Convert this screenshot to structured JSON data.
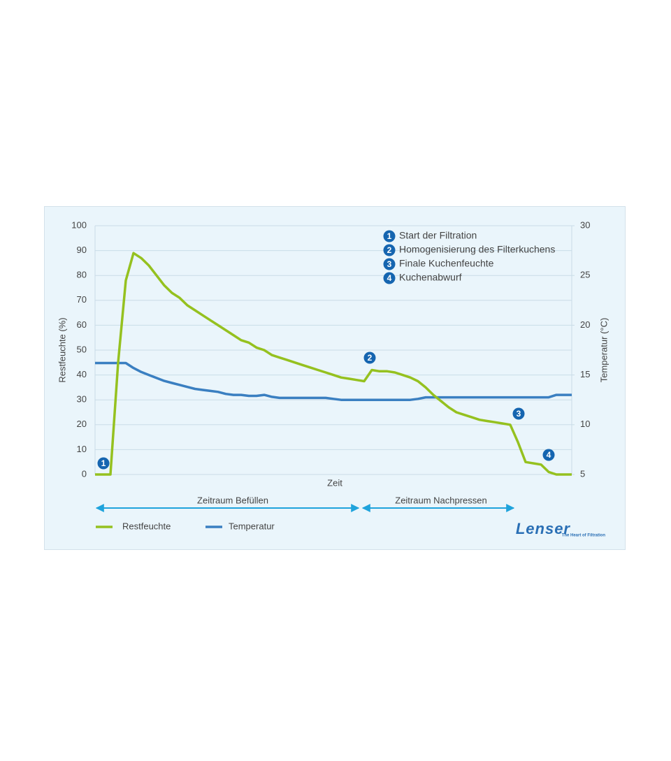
{
  "chart_data": {
    "type": "line",
    "xlabel": "Zeit",
    "ylabel": "Restfeuchte (%)",
    "y2label": "Temperatur (°C)",
    "categories": [
      null,
      null,
      null,
      null,
      null,
      null,
      null,
      null,
      null,
      null,
      null,
      null,
      null,
      null,
      null,
      null,
      null,
      null,
      null,
      null,
      null,
      null,
      null,
      null,
      null,
      null,
      null,
      null,
      null,
      null,
      null,
      null,
      null,
      null,
      null,
      null,
      null,
      null,
      null,
      null,
      null,
      null,
      null,
      null,
      null,
      null,
      null,
      null,
      null,
      null,
      null,
      null,
      null,
      null,
      null,
      null,
      null,
      null,
      null,
      null,
      null,
      null,
      null
    ],
    "ylim": [
      0,
      100
    ],
    "yticks": [
      0,
      10,
      20,
      30,
      40,
      50,
      60,
      70,
      80,
      90,
      100
    ],
    "y2lim": [
      5,
      30
    ],
    "y2ticks": [
      5,
      10,
      15,
      20,
      25,
      30
    ],
    "grid": true,
    "series": [
      {
        "name": "Restfeuchte",
        "color": "#95c11f",
        "values": [
          0,
          0,
          0,
          45,
          78,
          89,
          87,
          84,
          80,
          76,
          73,
          71,
          68,
          66,
          64,
          62,
          60,
          58,
          56,
          54,
          53,
          51,
          50,
          48,
          47,
          46,
          45,
          44,
          43,
          42,
          41,
          40,
          39,
          38.5,
          38,
          37.5,
          42,
          41.5,
          41.5,
          41,
          40,
          39,
          37.5,
          35,
          32,
          29.5,
          27,
          25,
          24,
          23,
          22,
          21.5,
          21,
          20.5,
          20,
          13,
          5,
          4.5,
          4,
          1,
          0,
          0,
          0
        ]
      },
      {
        "name": "Temperatur",
        "color": "#3a7fc1",
        "axis": "y2",
        "values": [
          16.2,
          16.2,
          16.2,
          16.2,
          16.2,
          15.7,
          15.3,
          15,
          14.7,
          14.4,
          14.2,
          14,
          13.8,
          13.6,
          13.5,
          13.4,
          13.3,
          13.1,
          13,
          13,
          12.9,
          12.9,
          13,
          12.8,
          12.7,
          12.7,
          12.7,
          12.7,
          12.7,
          12.7,
          12.7,
          12.6,
          12.5,
          12.5,
          12.5,
          12.5,
          12.5,
          12.5,
          12.5,
          12.5,
          12.5,
          12.5,
          12.6,
          12.75,
          12.75,
          12.75,
          12.75,
          12.75,
          12.75,
          12.75,
          12.75,
          12.75,
          12.75,
          12.75,
          12.75,
          12.75,
          12.75,
          12.75,
          12.75,
          12.75,
          13,
          13,
          13
        ]
      }
    ],
    "annotations": [
      {
        "number": "1",
        "text": "Start der Filtration"
      },
      {
        "number": "2",
        "text": "Homogenisierung des Filterkuchens"
      },
      {
        "number": "3",
        "text": "Finale Kuchenfeuchte"
      },
      {
        "number": "4",
        "text": "Kuchenabwurf"
      }
    ],
    "periods": [
      "Zeitraum Befüllen",
      "Zeitraum Nachpressen"
    ],
    "logo": {
      "brand": "Lenser",
      "tagline": "The Heart of Filtration"
    }
  }
}
